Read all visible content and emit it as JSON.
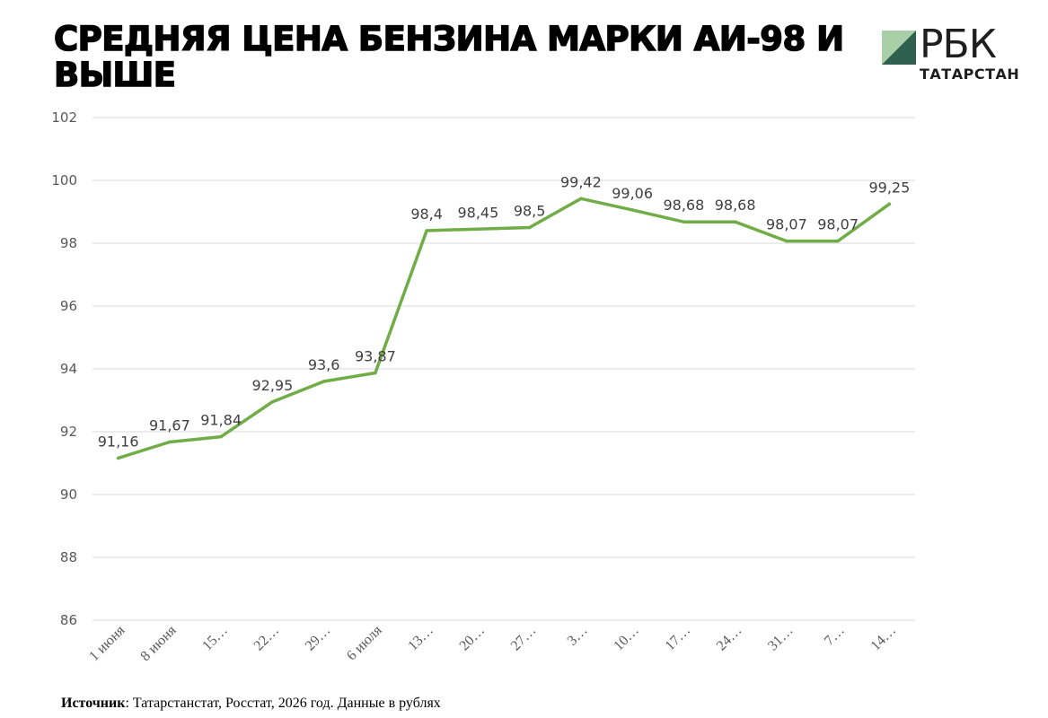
{
  "header": {
    "title": "СРЕДНЯЯ ЦЕНА БЕНЗИНА МАРКИ АИ-98 И ВЫШЕ",
    "logo_text": "РБК",
    "logo_sub": "ТАТАРСТАН"
  },
  "footer": {
    "source_label": "Источник",
    "source_text": ": Татарстанстат, Росстат, 2026 год. Данные в рублях"
  },
  "colors": {
    "line": "#70ad47",
    "grid": "#d9d9d9",
    "logo_light": "#a9cfa9",
    "logo_dark": "#2e5f4f"
  },
  "chart_data": {
    "type": "line",
    "title": "СРЕДНЯЯ ЦЕНА БЕНЗИНА МАРКИ АИ-98 И ВЫШЕ",
    "xlabel": "",
    "ylabel": "",
    "ylim": [
      86,
      102
    ],
    "yticks": [
      86,
      88,
      90,
      92,
      94,
      96,
      98,
      100,
      102
    ],
    "grid": true,
    "categories": [
      "1 июня",
      "8 июня",
      "15…",
      "22…",
      "29…",
      "6 июля",
      "13…",
      "20…",
      "27…",
      "3…",
      "10…",
      "17…",
      "24…",
      "31…",
      "7…",
      "14…"
    ],
    "values": [
      91.16,
      91.67,
      91.84,
      92.95,
      93.6,
      93.87,
      98.4,
      98.45,
      98.5,
      99.42,
      99.06,
      98.68,
      98.68,
      98.07,
      98.07,
      99.25
    ],
    "data_labels": [
      "91,16",
      "91,67",
      "91,84",
      "92,95",
      "93,6",
      "93,87",
      "98,4",
      "98,45",
      "98,5",
      "99,42",
      "99,06",
      "98,68",
      "98,68",
      "98,07",
      "98,07",
      "99,25"
    ]
  }
}
